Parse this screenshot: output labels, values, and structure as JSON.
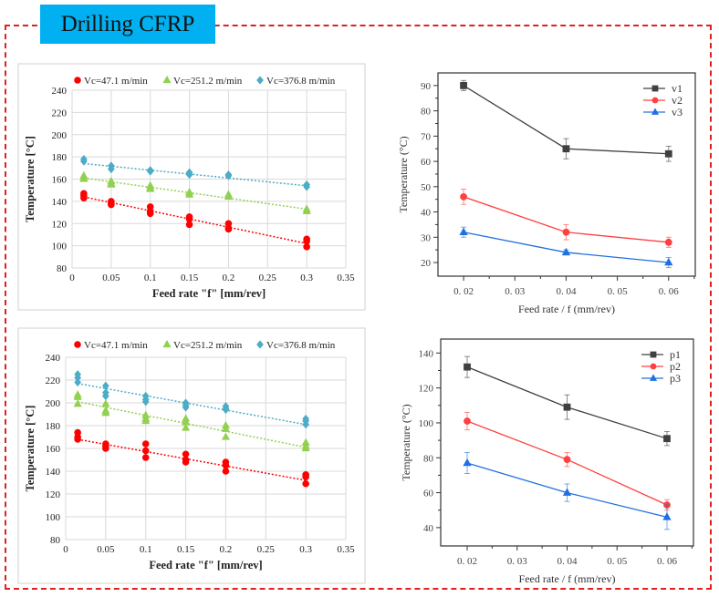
{
  "title": "Drilling CFRP",
  "colors": {
    "frame": "#e02020",
    "title_bg": "#00b0f0"
  },
  "chart_data": [
    {
      "type": "scatter",
      "xlabel": "Feed rate \"f\" [mm/rev]",
      "ylabel": "Temperature  [°C]",
      "xlim": [
        0,
        0.35
      ],
      "ylim": [
        80,
        240
      ],
      "xticks": [
        "0",
        "0.05",
        "0.1",
        "0.15",
        "0.2",
        "0.25",
        "0.3",
        "0.35"
      ],
      "yticks": [
        "80",
        "100",
        "120",
        "140",
        "160",
        "180",
        "200",
        "220",
        "240"
      ],
      "grid": true,
      "legend": "top",
      "series": [
        {
          "name": "Vc=47.1 m/min",
          "color": "#ff0000",
          "marker": "circle",
          "points": [
            [
              0.015,
              147
            ],
            [
              0.015,
              145
            ],
            [
              0.015,
              143
            ],
            [
              0.05,
              140
            ],
            [
              0.05,
              138
            ],
            [
              0.05,
              137
            ],
            [
              0.1,
              135
            ],
            [
              0.1,
              131
            ],
            [
              0.1,
              129
            ],
            [
              0.15,
              126
            ],
            [
              0.15,
              124
            ],
            [
              0.15,
              119
            ],
            [
              0.2,
              120
            ],
            [
              0.2,
              116
            ],
            [
              0.2,
              115
            ],
            [
              0.3,
              106
            ],
            [
              0.3,
              104
            ],
            [
              0.3,
              99
            ]
          ],
          "trend": [
            [
              0.015,
              144
            ],
            [
              0.3,
              102
            ]
          ]
        },
        {
          "name": "Vc=251.2 m/min",
          "color": "#92d050",
          "marker": "triangle",
          "points": [
            [
              0.015,
              163
            ],
            [
              0.015,
              161
            ],
            [
              0.015,
              160
            ],
            [
              0.05,
              158
            ],
            [
              0.05,
              156
            ],
            [
              0.05,
              155
            ],
            [
              0.1,
              154
            ],
            [
              0.1,
              152
            ],
            [
              0.1,
              151
            ],
            [
              0.15,
              148
            ],
            [
              0.15,
              146
            ],
            [
              0.2,
              146
            ],
            [
              0.2,
              144
            ],
            [
              0.3,
              133
            ],
            [
              0.3,
              131
            ]
          ],
          "trend": [
            [
              0.015,
              161
            ],
            [
              0.3,
              133
            ]
          ]
        },
        {
          "name": "Vc=376.8 m/min",
          "color": "#4bacc6",
          "marker": "diamond",
          "points": [
            [
              0.015,
              178
            ],
            [
              0.015,
              176
            ],
            [
              0.05,
              172
            ],
            [
              0.05,
              169
            ],
            [
              0.1,
              168
            ],
            [
              0.1,
              167
            ],
            [
              0.15,
              166
            ],
            [
              0.15,
              164
            ],
            [
              0.2,
              164
            ],
            [
              0.2,
              163
            ],
            [
              0.3,
              155
            ],
            [
              0.3,
              153
            ]
          ],
          "trend": [
            [
              0.015,
              174
            ],
            [
              0.3,
              154
            ]
          ]
        }
      ]
    },
    {
      "type": "line",
      "xlabel": "Feed rate / f (mm/rev)",
      "ylabel": "Temperature (°C)",
      "xlim": [
        0.015,
        0.0652
      ],
      "ylim": [
        14.6,
        95
      ],
      "x": [
        0.02,
        0.04,
        0.06
      ],
      "xticks": [
        "0. 02",
        "0. 03",
        "0. 04",
        "0. 05",
        "0. 06"
      ],
      "yticks": [
        "20",
        "30",
        "40",
        "50",
        "60",
        "70",
        "80",
        "90"
      ],
      "grid": false,
      "legend": "top-right",
      "series": [
        {
          "name": "v1",
          "color": "#404040",
          "marker": "square",
          "values": [
            90,
            65,
            63
          ],
          "errors": [
            2,
            4,
            3
          ]
        },
        {
          "name": "v2",
          "color": "#ff4040",
          "marker": "circle",
          "values": [
            46,
            32,
            28
          ],
          "errors": [
            3,
            3,
            2
          ]
        },
        {
          "name": "v3",
          "color": "#2070e0",
          "marker": "triangle",
          "values": [
            32,
            24,
            20
          ],
          "errors": [
            2,
            1,
            2
          ]
        }
      ]
    },
    {
      "type": "scatter",
      "xlabel": "Feed rate \"f\" [mm/rev]",
      "ylabel": "Temperature  [°C]",
      "xlim": [
        0,
        0.35
      ],
      "ylim": [
        80,
        240
      ],
      "xticks": [
        "0",
        "0.05",
        "0.1",
        "0.15",
        "0.2",
        "0.25",
        "0.3",
        "0.35"
      ],
      "yticks": [
        "80",
        "100",
        "120",
        "140",
        "160",
        "180",
        "200",
        "220",
        "240"
      ],
      "grid": true,
      "legend": "top",
      "series": [
        {
          "name": "Vc=47.1 m/min",
          "color": "#ff0000",
          "marker": "circle",
          "points": [
            [
              0.015,
              174
            ],
            [
              0.015,
              170
            ],
            [
              0.015,
              168
            ],
            [
              0.05,
              164
            ],
            [
              0.05,
              162
            ],
            [
              0.05,
              160
            ],
            [
              0.1,
              164
            ],
            [
              0.1,
              158
            ],
            [
              0.1,
              152
            ],
            [
              0.15,
              155
            ],
            [
              0.15,
              150
            ],
            [
              0.15,
              148
            ],
            [
              0.2,
              148
            ],
            [
              0.2,
              145
            ],
            [
              0.2,
              140
            ],
            [
              0.3,
              137
            ],
            [
              0.3,
              135
            ],
            [
              0.3,
              129
            ]
          ],
          "trend": [
            [
              0.015,
              168
            ],
            [
              0.3,
              132
            ]
          ]
        },
        {
          "name": "Vc=251.2 m/min",
          "color": "#92d050",
          "marker": "triangle",
          "points": [
            [
              0.015,
              207
            ],
            [
              0.015,
              205
            ],
            [
              0.015,
              199
            ],
            [
              0.05,
              199
            ],
            [
              0.05,
              193
            ],
            [
              0.05,
              191
            ],
            [
              0.1,
              189
            ],
            [
              0.1,
              186
            ],
            [
              0.1,
              184
            ],
            [
              0.15,
              186
            ],
            [
              0.15,
              183
            ],
            [
              0.15,
              178
            ],
            [
              0.2,
              180
            ],
            [
              0.2,
              177
            ],
            [
              0.2,
              170
            ],
            [
              0.3,
              165
            ],
            [
              0.3,
              162
            ],
            [
              0.3,
              160
            ]
          ],
          "trend": [
            [
              0.015,
              201
            ],
            [
              0.3,
              161
            ]
          ]
        },
        {
          "name": "Vc=376.8 m/min",
          "color": "#4bacc6",
          "marker": "diamond",
          "points": [
            [
              0.015,
              225
            ],
            [
              0.015,
              222
            ],
            [
              0.015,
              218
            ],
            [
              0.05,
              215
            ],
            [
              0.05,
              209
            ],
            [
              0.05,
              206
            ],
            [
              0.1,
              206
            ],
            [
              0.1,
              203
            ],
            [
              0.1,
              201
            ],
            [
              0.15,
              200
            ],
            [
              0.15,
              198
            ],
            [
              0.15,
              196
            ],
            [
              0.2,
              197
            ],
            [
              0.2,
              195
            ],
            [
              0.2,
              194
            ],
            [
              0.3,
              186
            ],
            [
              0.3,
              184
            ],
            [
              0.3,
              181
            ]
          ],
          "trend": [
            [
              0.015,
              217
            ],
            [
              0.3,
              181
            ]
          ]
        }
      ]
    },
    {
      "type": "line",
      "xlabel": "Feed rate / f (mm/rev)",
      "ylabel": "Temperature (°C)",
      "xlim": [
        0.0147,
        0.0653
      ],
      "ylim": [
        29.5,
        148
      ],
      "x": [
        0.02,
        0.04,
        0.06
      ],
      "xticks": [
        "0. 02",
        "0. 03",
        "0. 04",
        "0. 05",
        "0. 06"
      ],
      "yticks": [
        "40",
        "60",
        "80",
        "100",
        "120",
        "140"
      ],
      "grid": false,
      "legend": "top-right",
      "series": [
        {
          "name": "p1",
          "color": "#404040",
          "marker": "square",
          "values": [
            132,
            109,
            91
          ],
          "errors": [
            6,
            7,
            4
          ]
        },
        {
          "name": "p2",
          "color": "#ff4040",
          "marker": "circle",
          "values": [
            101,
            79,
            53
          ],
          "errors": [
            5,
            4,
            3
          ]
        },
        {
          "name": "p3",
          "color": "#2070e0",
          "marker": "triangle",
          "values": [
            77,
            60,
            46
          ],
          "errors": [
            6,
            5,
            7
          ]
        }
      ]
    }
  ]
}
